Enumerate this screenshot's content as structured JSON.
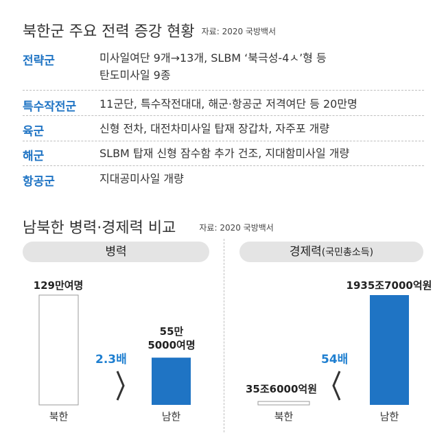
{
  "header": {
    "title": "북한군 주요 전력 증강 현황",
    "source": "자료: 2020 국방백서"
  },
  "table": {
    "rows": [
      {
        "category": "전략군",
        "lines": [
          "미사일여단 9개→13개, SLBM ‘북극성-4ㅅ’형 등",
          "탄도미사일 9종"
        ]
      },
      {
        "category": "특수작전군",
        "lines": [
          "11군단, 특수작전대대, 해군·항공군 저격여단 등 20만명"
        ]
      },
      {
        "category": "육군",
        "lines": [
          "신형 전차, 대전차미사일 탑재 장갑차, 자주포 개량"
        ]
      },
      {
        "category": "해군",
        "lines": [
          "SLBM 탑재 신형 잠수함 추가 건조, 지대함미사일 개량"
        ]
      },
      {
        "category": "항공군",
        "lines": [
          "지대공미사일 개량"
        ]
      }
    ]
  },
  "comparison": {
    "title": "남북한 병력·경제력 비교",
    "source": "자료: 2020 국방백서"
  },
  "chart_data": [
    {
      "type": "bar",
      "title": "병력",
      "categories": [
        "북한",
        "남한"
      ],
      "values": [
        1290000,
        555000
      ],
      "data_labels": [
        "129만여명",
        "55만\n5000여명"
      ],
      "ratio_label": "2.3배",
      "colors": [
        "#ffffff",
        "#1f74c4"
      ]
    },
    {
      "type": "bar",
      "title": "경제력",
      "title_sub": "(국민총소득)",
      "categories": [
        "북한",
        "남한"
      ],
      "values": [
        35.6,
        1935.7
      ],
      "unit": "조원",
      "data_labels": [
        "35조6000억원",
        "1935조7000억원"
      ],
      "ratio_label": "54배",
      "colors": [
        "#ffffff",
        "#1f74c4"
      ]
    }
  ]
}
